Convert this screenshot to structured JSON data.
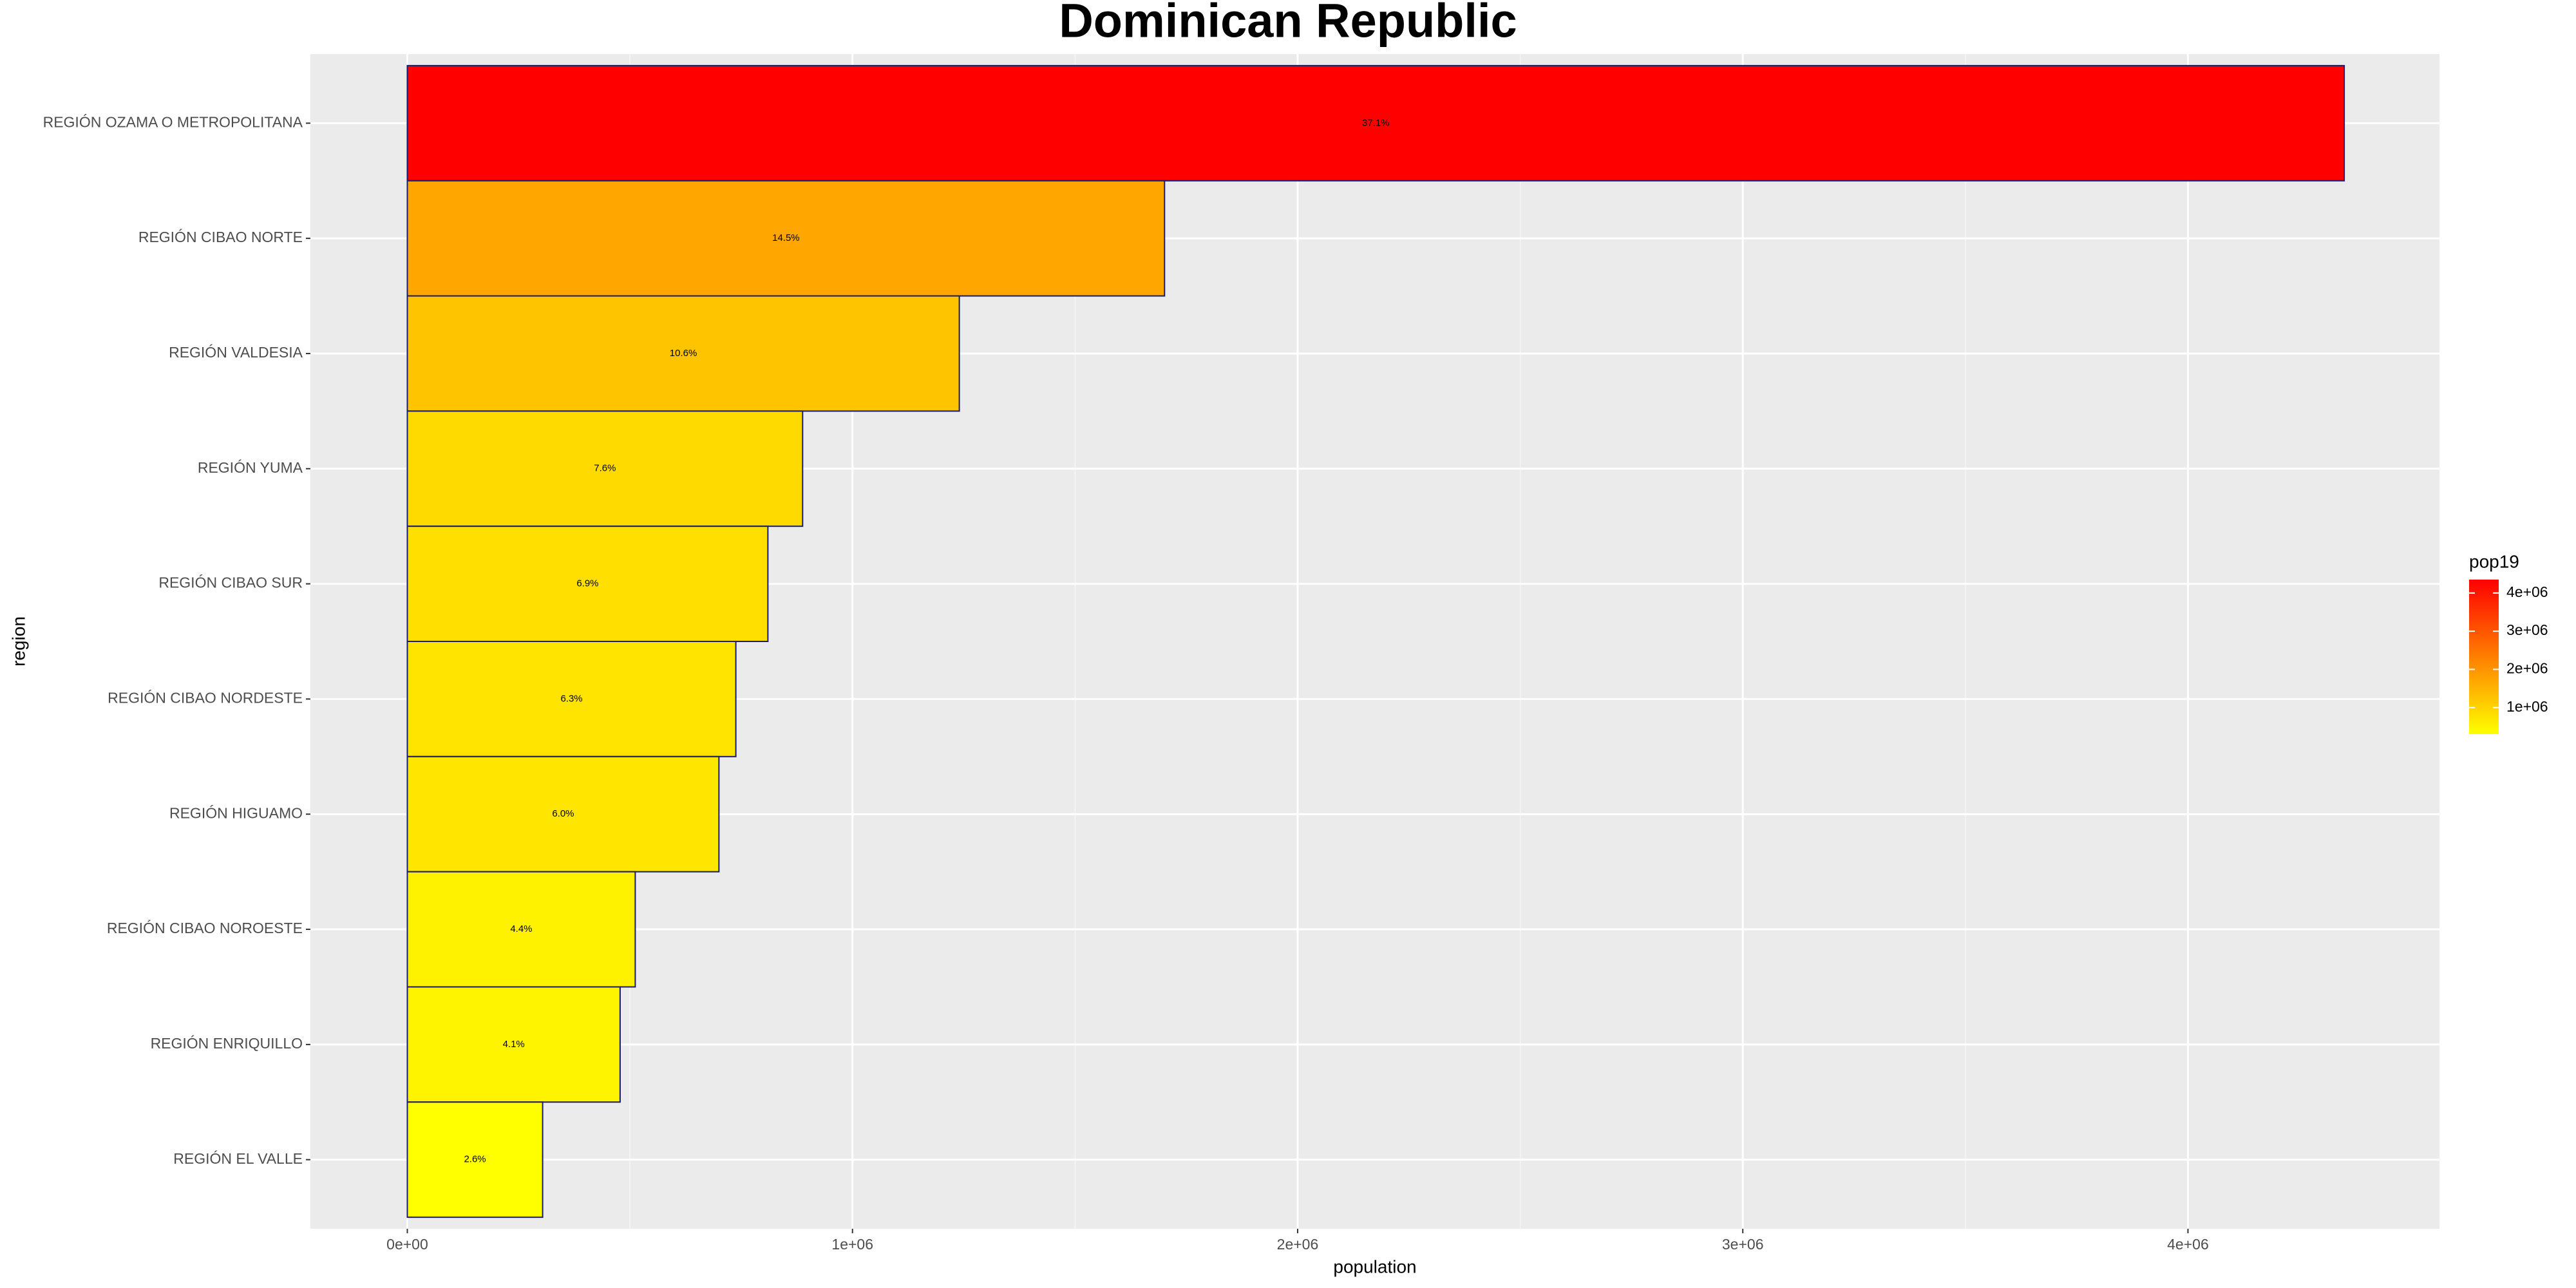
{
  "chart_data": {
    "type": "bar",
    "orientation": "horizontal",
    "title": "Dominican Republic",
    "x_label": "population",
    "y_label": "region",
    "categories": [
      "REGIÓN OZAMA O METROPOLITANA",
      "REGIÓN CIBAO NORTE",
      "REGIÓN VALDESIA",
      "REGIÓN YUMA",
      "REGIÓN CIBAO SUR",
      "REGIÓN CIBAO NORDESTE",
      "REGIÓN HIGUAMO",
      "REGIÓN CIBAO NOROESTE",
      "REGIÓN ENRIQUILLO",
      "REGIÓN EL VALLE"
    ],
    "values": [
      4351000,
      1701000,
      1240000,
      888000,
      810000,
      738000,
      700000,
      512000,
      478000,
      304000
    ],
    "percent_labels": [
      "37.1%",
      "14.5%",
      "10.6%",
      "7.6%",
      "6.9%",
      "6.3%",
      "6.0%",
      "4.4%",
      "4.1%",
      "2.6%"
    ],
    "xlim": [
      -217700,
      4565000
    ],
    "xticks": [
      {
        "value": 0,
        "label": "0e+00"
      },
      {
        "value": 1000000,
        "label": "1e+06"
      },
      {
        "value": 2000000,
        "label": "2e+06"
      },
      {
        "value": 3000000,
        "label": "3e+06"
      },
      {
        "value": 4000000,
        "label": "4e+06"
      }
    ],
    "grid": true,
    "color_low": "#ffff00",
    "color_high": "#ff0000",
    "outline_color": "#1a1a6e",
    "legend": {
      "title": "pop19",
      "position": "right",
      "ticks": [
        {
          "value": 1000000,
          "label": "1e+06"
        },
        {
          "value": 2000000,
          "label": "2e+06"
        },
        {
          "value": 3000000,
          "label": "3e+06"
        },
        {
          "value": 4000000,
          "label": "4e+06"
        }
      ]
    }
  }
}
